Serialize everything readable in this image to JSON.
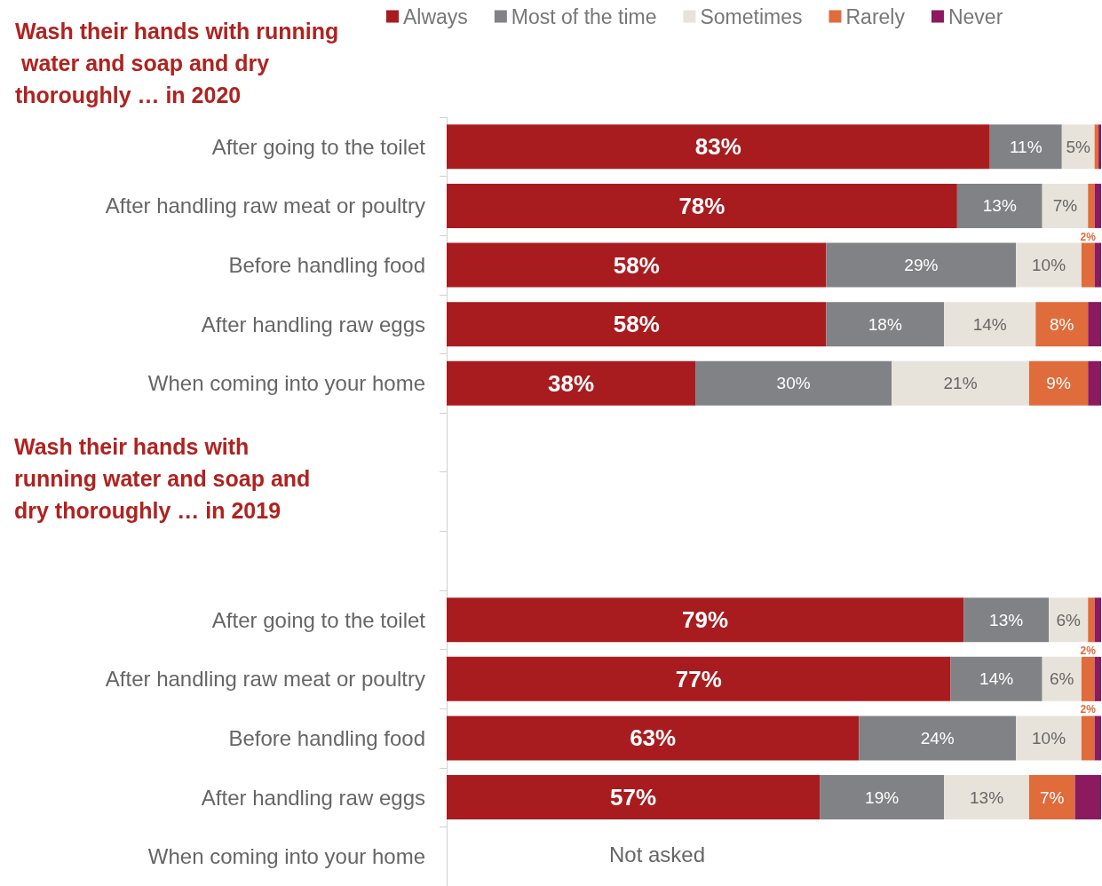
{
  "chart_data": {
    "type": "bar",
    "orientation": "horizontal",
    "stacked": true,
    "title": "Wash their hands with running water and soap and dry thoroughly … in 2020",
    "annotations": [
      "Wash their hands with running water and soap and dry thoroughly … in 2019",
      "Not asked"
    ],
    "categories": [
      "After going to the toilet",
      "After handling raw meat or poultry",
      "Before handling food",
      "After handling raw eggs",
      "When coming into your home",
      null,
      null,
      null,
      "After going to the toilet",
      "After handling raw meat or poultry",
      "Before handling food",
      "After handling raw eggs",
      "When coming into your home"
    ],
    "xlim": [
      0,
      100
    ],
    "legend": "top",
    "series": [
      {
        "name": "Always",
        "color": "#a81c1f",
        "values": [
          83,
          78,
          58,
          58,
          38,
          null,
          null,
          null,
          79,
          77,
          63,
          57,
          null
        ],
        "value_labels": [
          "83%",
          "78%",
          "58%",
          "58%",
          "38%",
          null,
          null,
          null,
          "79%",
          "77%",
          "63%",
          "57%",
          null
        ]
      },
      {
        "name": "Most of the time",
        "color": "#808285",
        "values": [
          11,
          13,
          29,
          18,
          30,
          null,
          null,
          null,
          13,
          14,
          24,
          19,
          null
        ],
        "value_labels": [
          "11%",
          "13%",
          "29%",
          "18%",
          "30%",
          null,
          null,
          null,
          "13%",
          "14%",
          "24%",
          "19%",
          null
        ]
      },
      {
        "name": "Sometimes",
        "color": "#e8e3da",
        "values": [
          5,
          7,
          10,
          14,
          21,
          null,
          null,
          null,
          6,
          6,
          10,
          13,
          null
        ],
        "value_labels": [
          "5%",
          "7%",
          "10%",
          "14%",
          "21%",
          null,
          null,
          null,
          "6%",
          "6%",
          "10%",
          "13%",
          null
        ]
      },
      {
        "name": "Rarely",
        "color": "#e06b3b",
        "values": [
          0.6,
          1,
          2,
          8,
          9,
          null,
          null,
          null,
          1,
          2,
          2,
          7,
          null
        ],
        "value_labels": [
          null,
          null,
          "2%",
          "8%",
          "9%",
          null,
          null,
          null,
          null,
          "2%",
          "2%",
          "7%",
          null
        ]
      },
      {
        "name": "Never",
        "color": "#8b1a5e",
        "values": [
          0.4,
          1,
          1,
          2,
          2,
          null,
          null,
          null,
          1,
          1,
          1,
          4,
          null
        ],
        "value_labels": [
          null,
          null,
          null,
          null,
          null,
          null,
          null,
          null,
          null,
          null,
          null,
          null,
          null
        ]
      }
    ]
  }
}
